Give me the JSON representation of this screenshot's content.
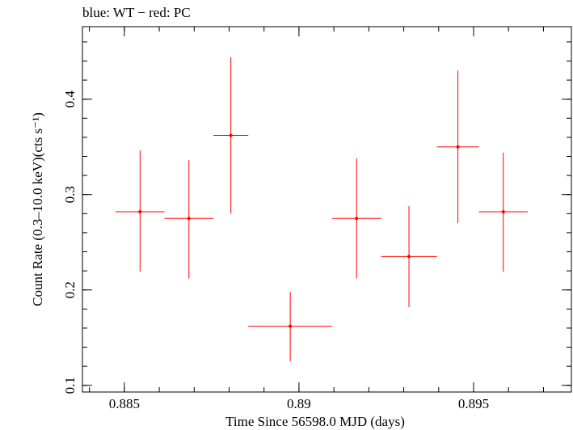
{
  "chart_data": {
    "type": "scatter",
    "title": "blue: WT − red: PC",
    "xlabel": "Time Since 56598.0 MJD (days)",
    "ylabel": "Count Rate (0.3–10.0 keV)(cts s⁻¹)",
    "xlim": [
      0.8838,
      0.8978
    ],
    "ylim": [
      0.093,
      0.476
    ],
    "x_ticks": [
      {
        "value": 0.885,
        "label": "0.885"
      },
      {
        "value": 0.89,
        "label": "0.89"
      },
      {
        "value": 0.895,
        "label": "0.895"
      }
    ],
    "y_ticks": [
      {
        "value": 0.1,
        "label": "0.1"
      },
      {
        "value": 0.2,
        "label": "0.2"
      },
      {
        "value": 0.3,
        "label": "0.3"
      },
      {
        "value": 0.4,
        "label": "0.4"
      }
    ],
    "x_minor_step": 0.001,
    "y_minor_step": 0.02,
    "grid": false,
    "series": [
      {
        "color": "#ff0000",
        "points": [
          {
            "x": 0.88545,
            "xerr": 0.0007,
            "y": 0.282,
            "y_low": 0.219,
            "y_high": 0.346
          },
          {
            "x": 0.88685,
            "xerr": 0.0007,
            "y": 0.275,
            "y_low": 0.212,
            "y_high": 0.336
          },
          {
            "x": 0.88805,
            "xerr": 0.0005,
            "y": 0.362,
            "y_low": 0.28,
            "y_high": 0.444
          },
          {
            "x": 0.88975,
            "xerr": 0.0012,
            "y": 0.162,
            "y_low": 0.125,
            "y_high": 0.198
          },
          {
            "x": 0.89165,
            "xerr": 0.0007,
            "y": 0.275,
            "y_low": 0.212,
            "y_high": 0.338
          },
          {
            "x": 0.89315,
            "xerr": 0.0008,
            "y": 0.235,
            "y_low": 0.182,
            "y_high": 0.288
          },
          {
            "x": 0.89455,
            "xerr": 0.0006,
            "y": 0.35,
            "y_low": 0.27,
            "y_high": 0.43
          },
          {
            "x": 0.89585,
            "xerr": 0.0007,
            "y": 0.282,
            "y_low": 0.219,
            "y_high": 0.344
          }
        ]
      }
    ]
  }
}
